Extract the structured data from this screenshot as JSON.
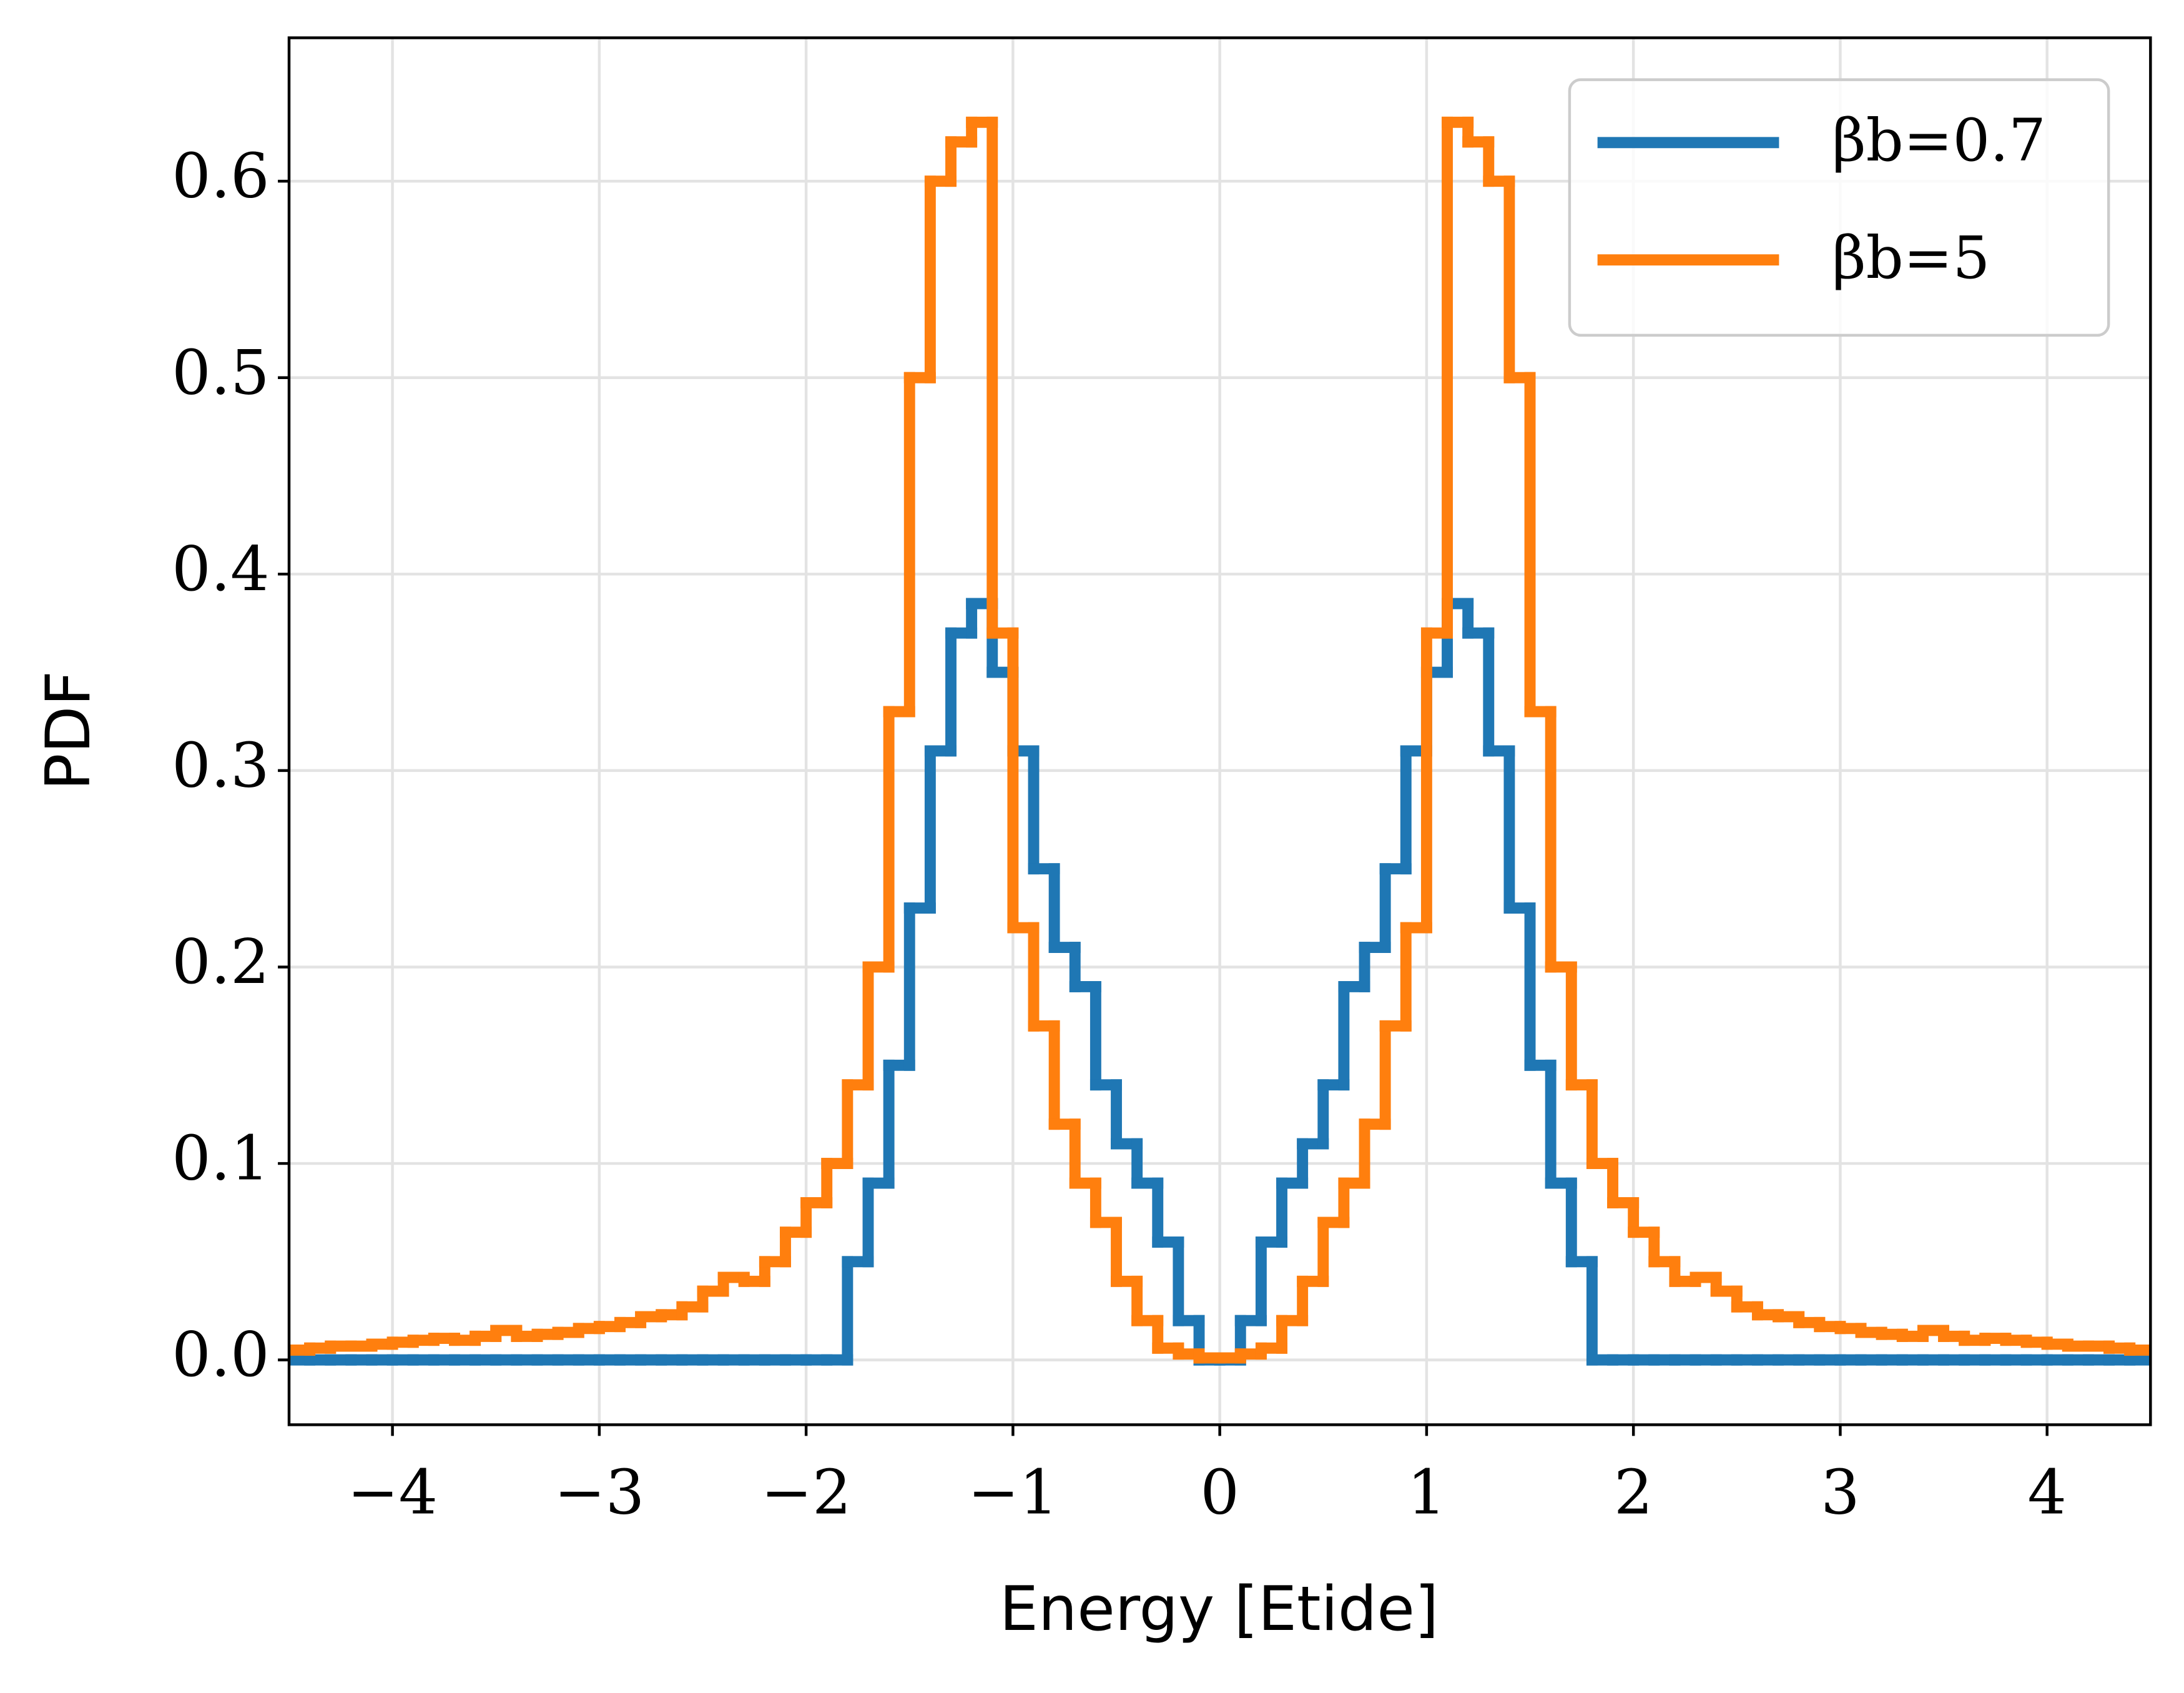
{
  "chart_data": {
    "type": "step-histogram",
    "xlabel": "Energy [Etide]",
    "ylabel": "PDF",
    "xlim": [
      -4.5,
      4.5
    ],
    "ylim": [
      -0.033,
      0.673
    ],
    "xticks": [
      {
        "value": -4,
        "label": "−4"
      },
      {
        "value": -3,
        "label": "−3"
      },
      {
        "value": -2,
        "label": "−2"
      },
      {
        "value": -1,
        "label": "−1"
      },
      0,
      1,
      2,
      3,
      4
    ],
    "yticks": [
      {
        "value": 0,
        "label": "0.0"
      },
      0.1,
      0.2,
      0.3,
      0.4,
      0.5,
      0.6
    ],
    "grid": true,
    "legend": "upper right",
    "bins": [
      -4.5,
      -4.4,
      -4.3,
      -4.2,
      -4.1,
      -4.0,
      -3.9,
      -3.8,
      -3.7,
      -3.6,
      -3.5,
      -3.4,
      -3.3,
      -3.2,
      -3.1,
      -3.0,
      -2.9,
      -2.8,
      -2.7,
      -2.6,
      -2.5,
      -2.4,
      -2.3,
      -2.2,
      -2.1,
      -2.0,
      -1.9,
      -1.8,
      -1.7,
      -1.6,
      -1.5,
      -1.4,
      -1.3,
      -1.2,
      -1.1,
      -1.0,
      -0.9,
      -0.8,
      -0.7,
      -0.6,
      -0.5,
      -0.4,
      -0.3,
      -0.2,
      -0.1,
      0.0,
      0.1,
      0.2,
      0.3,
      0.4,
      0.5,
      0.6,
      0.7,
      0.8,
      0.9,
      1.0,
      1.1,
      1.2,
      1.3,
      1.4,
      1.5,
      1.6,
      1.7,
      1.8,
      1.9,
      2.0,
      2.1,
      2.2,
      2.3,
      2.4,
      2.5,
      2.6,
      2.7,
      2.8,
      2.9,
      3.0,
      3.1,
      3.2,
      3.3,
      3.4,
      3.5,
      3.6,
      3.7,
      3.8,
      3.9,
      4.0,
      4.1,
      4.2,
      4.3,
      4.4,
      4.5
    ],
    "series": [
      {
        "name": "βb=0.7",
        "color": "#1f77b4",
        "values": [
          0,
          0,
          0,
          0,
          0,
          0,
          0,
          0,
          0,
          0,
          0,
          0,
          0,
          0,
          0,
          0,
          0,
          0,
          0,
          0,
          0,
          0,
          0,
          0,
          0,
          0,
          0,
          0.05,
          0.09,
          0.15,
          0.23,
          0.31,
          0.37,
          0.385,
          0.35,
          0.31,
          0.25,
          0.21,
          0.19,
          0.14,
          0.11,
          0.09,
          0.06,
          0.02,
          0,
          0,
          0.02,
          0.06,
          0.09,
          0.11,
          0.14,
          0.19,
          0.21,
          0.25,
          0.31,
          0.35,
          0.385,
          0.37,
          0.31,
          0.23,
          0.15,
          0.09,
          0.05,
          0,
          0,
          0,
          0,
          0,
          0,
          0,
          0,
          0,
          0,
          0,
          0,
          0,
          0,
          0,
          0,
          0,
          0,
          0,
          0,
          0,
          0,
          0,
          0,
          0,
          0,
          0
        ]
      },
      {
        "name": "βb=5",
        "color": "#ff7f0e",
        "values": [
          0.005,
          0.006,
          0.007,
          0.007,
          0.008,
          0.009,
          0.01,
          0.011,
          0.01,
          0.012,
          0.015,
          0.012,
          0.013,
          0.014,
          0.016,
          0.017,
          0.019,
          0.022,
          0.023,
          0.027,
          0.035,
          0.042,
          0.04,
          0.05,
          0.065,
          0.08,
          0.1,
          0.14,
          0.2,
          0.33,
          0.5,
          0.6,
          0.62,
          0.63,
          0.37,
          0.22,
          0.17,
          0.12,
          0.09,
          0.07,
          0.04,
          0.02,
          0.006,
          0.003,
          0.001,
          0.001,
          0.003,
          0.006,
          0.02,
          0.04,
          0.07,
          0.09,
          0.12,
          0.17,
          0.22,
          0.37,
          0.63,
          0.62,
          0.6,
          0.5,
          0.33,
          0.2,
          0.14,
          0.1,
          0.08,
          0.065,
          0.05,
          0.04,
          0.042,
          0.035,
          0.027,
          0.023,
          0.022,
          0.019,
          0.017,
          0.016,
          0.014,
          0.013,
          0.012,
          0.015,
          0.012,
          0.01,
          0.011,
          0.01,
          0.009,
          0.008,
          0.007,
          0.007,
          0.006,
          0.005
        ]
      }
    ]
  }
}
